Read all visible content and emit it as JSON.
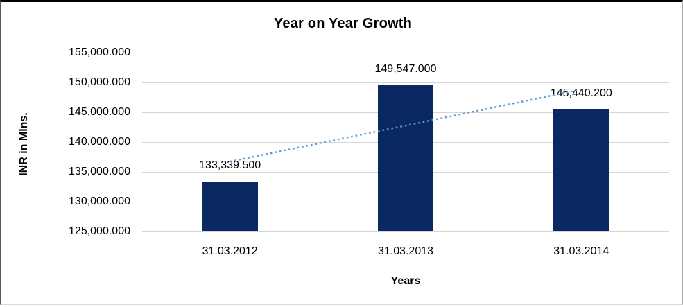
{
  "chart_data": {
    "type": "bar",
    "title": "Year on Year Growth",
    "xlabel": "Years",
    "ylabel": "INR in Mlns.",
    "categories": [
      "31.03.2012",
      "31.03.2013",
      "31.03.2014"
    ],
    "values": [
      133339.5,
      149547.0,
      145440.2
    ],
    "data_labels": [
      "133,339.500",
      "149,547.000",
      "145,440.200"
    ],
    "y_ticks": [
      {
        "value": 155000,
        "label": "155,000.000"
      },
      {
        "value": 150000,
        "label": "150,000.000"
      },
      {
        "value": 145000,
        "label": "145,000.000"
      },
      {
        "value": 140000,
        "label": "140,000.000"
      },
      {
        "value": 135000,
        "label": "135,000.000"
      },
      {
        "value": 130000,
        "label": "130,000.000"
      },
      {
        "value": 125000,
        "label": "125,000.000"
      }
    ],
    "ylim": [
      125000,
      155000
    ],
    "grid": true,
    "legend": "none",
    "bar_color": "#0a2861",
    "trendline": {
      "kind": "linear",
      "style": "dotted",
      "color": "#5b9bd5"
    }
  }
}
